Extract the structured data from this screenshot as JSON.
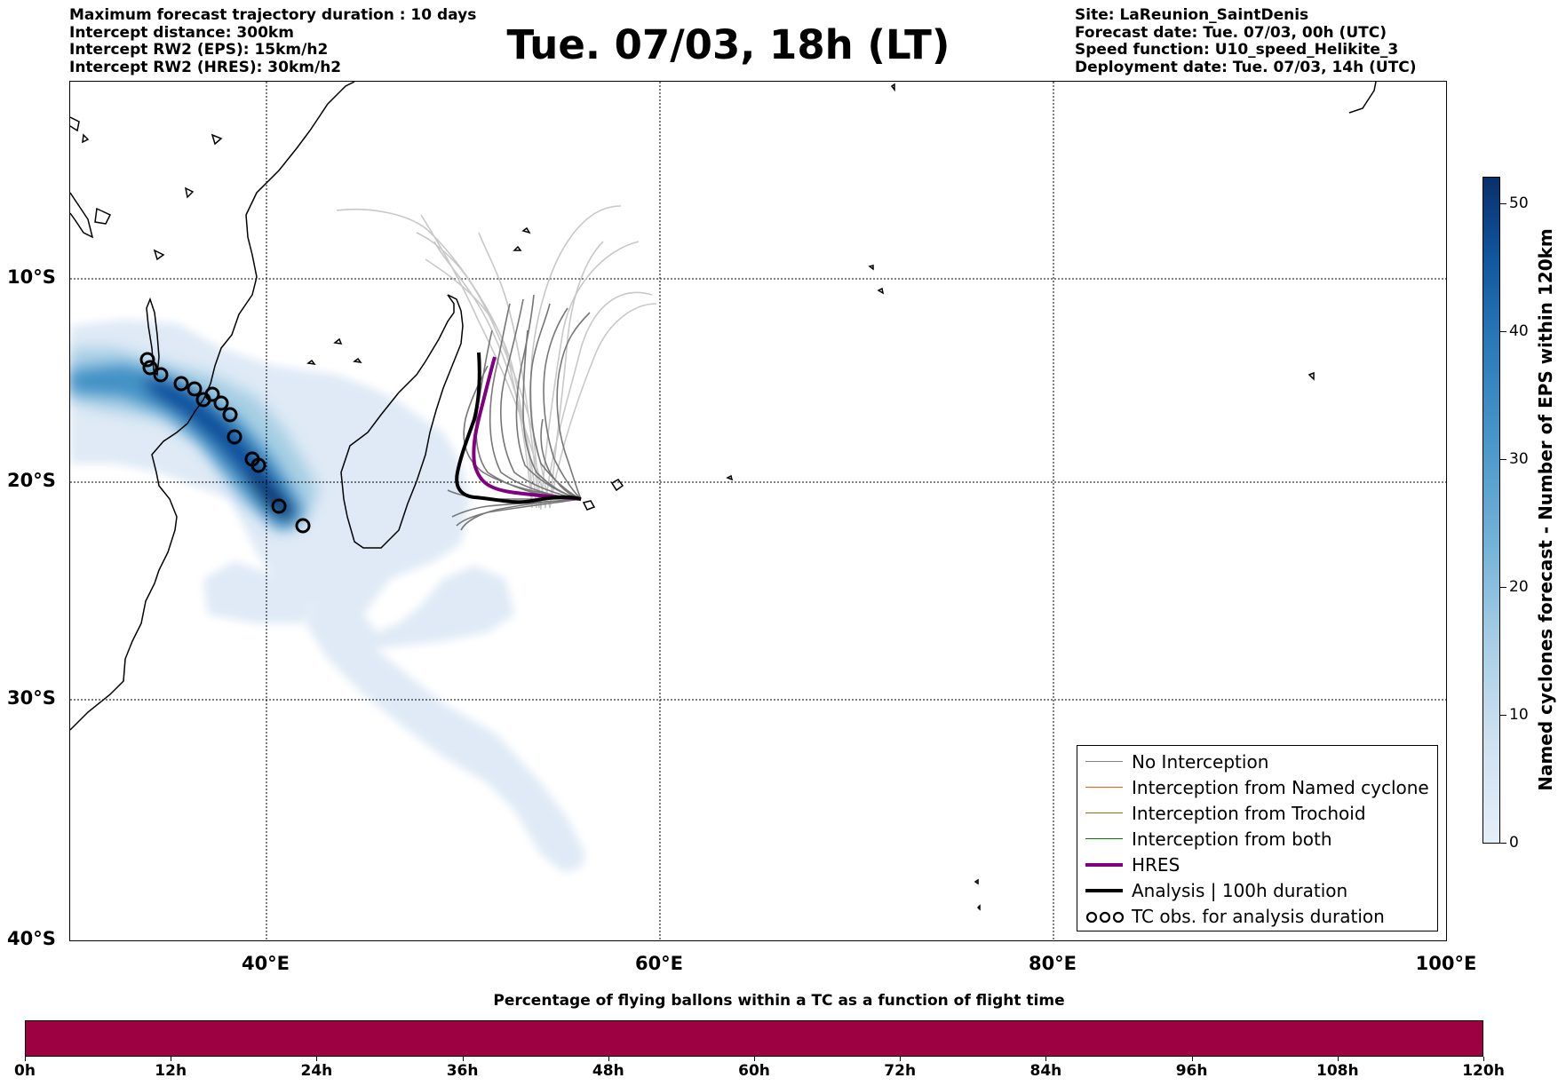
{
  "header": {
    "left_lines": [
      "Maximum forecast trajectory duration : 10 days",
      "Intercept distance: 300km",
      "Intercept RW2 (EPS):  15km/h2",
      "Intercept RW2 (HRES): 30km/h2"
    ],
    "title": "Tue. 07/03, 18h (LT)",
    "right_lines": [
      "Site: LaReunion_SaintDenis",
      "Forecast date: Tue. 07/03, 00h (UTC)",
      "Speed function: U10_speed_Helikite_3",
      "Deployment date: Tue. 07/03, 14h (UTC)"
    ]
  },
  "map": {
    "lat_labels": [
      "10°S",
      "20°S",
      "30°S",
      "40°S"
    ],
    "lon_labels": [
      "40°E",
      "60°E",
      "80°E",
      "100°E"
    ],
    "extent": {
      "lon": [
        30,
        100
      ],
      "lat": [
        -40,
        -0.5
      ]
    }
  },
  "legend": {
    "items": [
      {
        "label": "No Interception",
        "color": "#808080"
      },
      {
        "label": "Interception from Named cyclone",
        "color": "#ff5a00"
      },
      {
        "label": "Interception from Trochoid",
        "color": "#808000"
      },
      {
        "label": "Interception from both",
        "color": "#008000"
      },
      {
        "label": "HRES",
        "color": "#800080"
      },
      {
        "label": "Analysis | 100h duration",
        "color": "#000000"
      },
      {
        "label": "TC obs. for analysis duration",
        "symbol": "cyclone-symbol-icon"
      }
    ]
  },
  "colorbar": {
    "title": "Named cyclones forecast - Number of EPS within 120km",
    "ticks": [
      "0",
      "10",
      "20",
      "30",
      "40",
      "50"
    ]
  },
  "flight_time_bar": {
    "title": "Percentage of flying ballons within a TC as a function of flight time",
    "ticks": [
      "0h",
      "12h",
      "24h",
      "36h",
      "48h",
      "60h",
      "72h",
      "84h",
      "96h",
      "108h",
      "120h"
    ],
    "fill_color": "#9e0142"
  }
}
